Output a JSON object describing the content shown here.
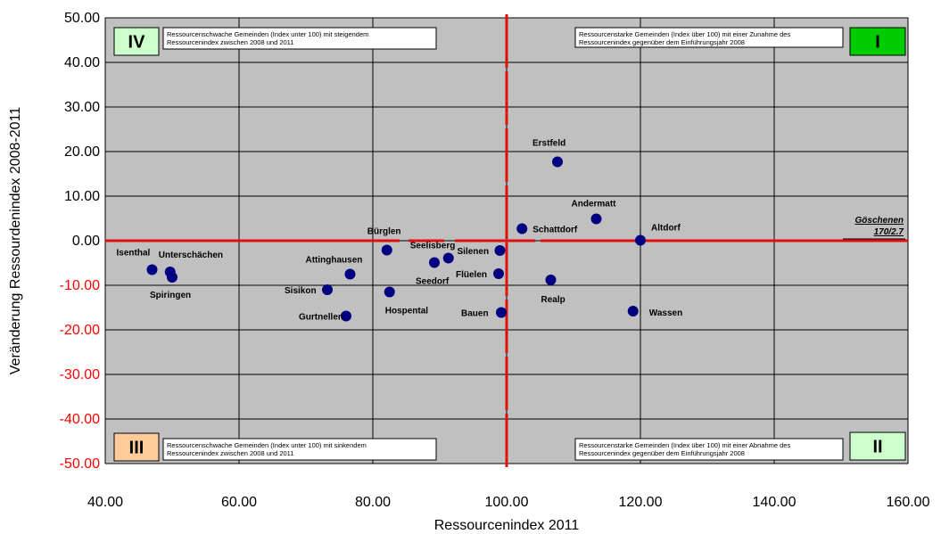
{
  "chart_data": {
    "type": "scatter",
    "xlabel": "Ressourcenindex 2011",
    "ylabel": "Veränderung Ressourdenindex 2008-2011",
    "xlim": [
      40,
      160
    ],
    "ylim": [
      -50,
      50
    ],
    "x_ticks": [
      "40.00",
      "60.00",
      "80.00",
      "100.00",
      "120.00",
      "140.00",
      "160.00"
    ],
    "y_ticks": [
      "50.00",
      "40.00",
      "30.00",
      "20.00",
      "10.00",
      "0.00",
      "-10.00",
      "-20.00",
      "-30.00",
      "-40.00",
      "-50.00"
    ],
    "grid": true,
    "colors": {
      "plot_bg": "#c0c0c0",
      "grid": "#000000",
      "divider": "#e01010",
      "marker": "#000080",
      "negative_tick": "#ff0000",
      "badge_I": "#00cc00",
      "badge_II": "#ccffcc",
      "badge_III": "#ffcc99",
      "badge_IV": "#ccffcc"
    },
    "points": [
      {
        "name": "Isenthal",
        "x": 47.0,
        "y": -6.5
      },
      {
        "name": "Unterschächen",
        "x": 49.7,
        "y": -7.0
      },
      {
        "name": "Spiringen",
        "x": 50.0,
        "y": -8.2
      },
      {
        "name": "Sisikon",
        "x": 73.2,
        "y": -11.0
      },
      {
        "name": "Attinghausen",
        "x": 76.6,
        "y": -7.5
      },
      {
        "name": "Gurtnellen",
        "x": 76.0,
        "y": -16.9
      },
      {
        "name": "Bürglen",
        "x": 82.1,
        "y": -2.1
      },
      {
        "name": "Hospental",
        "x": 82.5,
        "y": -11.5
      },
      {
        "name": "Seedorf",
        "x": 89.2,
        "y": -4.9
      },
      {
        "name": "Seelisberg",
        "x": 91.3,
        "y": -3.9
      },
      {
        "name": "Silenen",
        "x": 99.0,
        "y": -2.2
      },
      {
        "name": "Flüelen",
        "x": 98.8,
        "y": -7.4
      },
      {
        "name": "Bauen",
        "x": 99.2,
        "y": -16.1
      },
      {
        "name": "Schattdorf",
        "x": 102.3,
        "y": 2.7
      },
      {
        "name": "Erstfeld",
        "x": 107.6,
        "y": 17.7
      },
      {
        "name": "Realp",
        "x": 106.6,
        "y": -8.8
      },
      {
        "name": "Andermatt",
        "x": 113.4,
        "y": 4.9
      },
      {
        "name": "Altdorf",
        "x": 120.0,
        "y": 0.1
      },
      {
        "name": "Wassen",
        "x": 118.9,
        "y": -15.8
      }
    ],
    "offscale_annotation": {
      "line1": "Göschenen",
      "line2": "170/2.7"
    },
    "quadrants": {
      "I": {
        "badge": "I",
        "text1": "Ressourcenstarke Gemeinden (Index über 100) mit einer Zunahme des",
        "text2": "Ressourcenindex gegenüber dem Einführungsjahr 2008"
      },
      "II": {
        "badge": "II",
        "text1": "Ressourcenstarke Gemeinden (Index über 100) mit einer Abnahme des",
        "text2": "Ressourcenindex gegenüber dem Einführungsjahr 2008"
      },
      "III": {
        "badge": "III",
        "text1": "Ressourcenschwache Gemeinden (Index unter 100) mit sinkendem",
        "text2": "Ressourcenindex zwischen 2008 und 2011"
      },
      "IV": {
        "badge": "IV",
        "text1": "Ressourcenschwache Gemeinden (Index unter 100) mit steigendem",
        "text2": "Ressourcenindex zwischen 2008 und 2011"
      }
    }
  }
}
